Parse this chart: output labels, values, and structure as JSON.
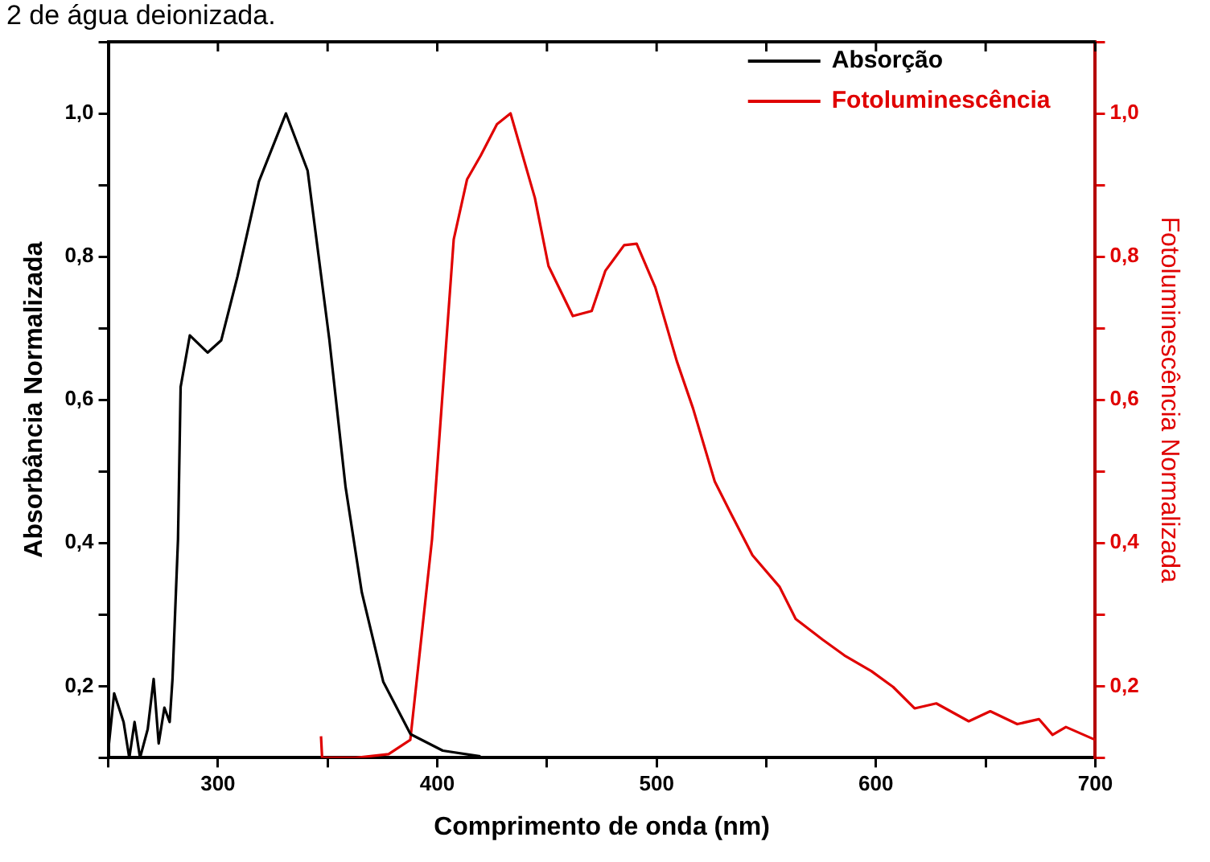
{
  "chart_data": {
    "type": "line",
    "annotations": [
      "2 de água deionizada."
    ],
    "xlabel": "Comprimento de onda (nm)",
    "ylabel": "Absorbância Normalizada",
    "y2label": "Fotoluminescência Normalizada",
    "xlim": [
      250,
      700
    ],
    "xticks": [
      {
        "value": 250,
        "label": null
      },
      300,
      {
        "value": 350,
        "label": null
      },
      400,
      {
        "value": 450,
        "label": null
      },
      500,
      {
        "value": 550,
        "label": null
      },
      600,
      {
        "value": 650,
        "label": null
      },
      700
    ],
    "ylim": [
      0.1,
      1.1
    ],
    "yticks": [
      {
        "value": 0.1,
        "label": null
      },
      {
        "value": 0.2,
        "label": "0,2"
      },
      {
        "value": 0.3,
        "label": null
      },
      {
        "value": 0.4,
        "label": "0,4"
      },
      {
        "value": 0.5,
        "label": null
      },
      {
        "value": 0.6,
        "label": "0,6"
      },
      {
        "value": 0.7,
        "label": null
      },
      {
        "value": 0.8,
        "label": "0,8"
      },
      {
        "value": 0.9,
        "label": null
      },
      {
        "value": 1.0,
        "label": "1,0"
      },
      {
        "value": 1.1,
        "label": null
      }
    ],
    "y2lim": [
      0.1,
      1.1
    ],
    "y2ticks": [
      {
        "value": 0.1,
        "label": null
      },
      {
        "value": 0.2,
        "label": "0,2"
      },
      {
        "value": 0.3,
        "label": null
      },
      {
        "value": 0.4,
        "label": "0,4"
      },
      {
        "value": 0.5,
        "label": null
      },
      {
        "value": 0.6,
        "label": "0,6"
      },
      {
        "value": 0.7,
        "label": null
      },
      {
        "value": 0.8,
        "label": "0,8"
      },
      {
        "value": 0.9,
        "label": null
      },
      {
        "value": 1.0,
        "label": "1,0"
      },
      {
        "value": 1.1,
        "label": null
      }
    ],
    "grid": false,
    "legend": "top right",
    "marker": "none",
    "line_style": "solid",
    "series": [
      {
        "name": "Absorção",
        "color": "#000000",
        "x": [
          250,
          252.7,
          257,
          259.6,
          262,
          264.5,
          268,
          270.7,
          273,
          275.6,
          278,
          279.3,
          281.8,
          283,
          287.2,
          295.3,
          301.5,
          308.9,
          318.7,
          331,
          340.9,
          350.8,
          358.2,
          365.6,
          375.4,
          387.8,
          402.5,
          419.7
        ],
        "values": [
          0.11,
          0.19,
          0.15,
          0.1,
          0.15,
          0.1,
          0.14,
          0.21,
          0.12,
          0.17,
          0.15,
          0.21,
          0.405,
          0.618,
          0.69,
          0.666,
          0.683,
          0.772,
          0.905,
          1.0,
          0.92,
          0.684,
          0.478,
          0.331,
          0.206,
          0.133,
          0.11,
          0.102
        ]
      },
      {
        "name": "Fotoluminescência",
        "color": "#e00000",
        "axis": "y2",
        "x": [
          347,
          347.5,
          363,
          377.8,
          387.7,
          397.6,
          407.5,
          413.6,
          419.8,
          427.2,
          433.4,
          444.5,
          450.7,
          461.8,
          470.4,
          476.6,
          485.2,
          490.9,
          499.4,
          509.2,
          516.6,
          526.5,
          533.9,
          543.7,
          556,
          563.4,
          575.7,
          585.6,
          597.9,
          607.8,
          617.6,
          627.5,
          642.3,
          652.1,
          664.4,
          674.3,
          680.5,
          686.6,
          700
        ],
        "values": [
          0.13,
          0.1,
          0.1,
          0.105,
          0.125,
          0.405,
          0.824,
          0.908,
          0.941,
          0.985,
          1.0,
          0.882,
          0.787,
          0.717,
          0.724,
          0.78,
          0.816,
          0.818,
          0.757,
          0.654,
          0.588,
          0.486,
          0.441,
          0.383,
          0.339,
          0.294,
          0.265,
          0.243,
          0.221,
          0.199,
          0.169,
          0.176,
          0.151,
          0.165,
          0.147,
          0.154,
          0.132,
          0.143,
          0.125
        ]
      }
    ]
  }
}
